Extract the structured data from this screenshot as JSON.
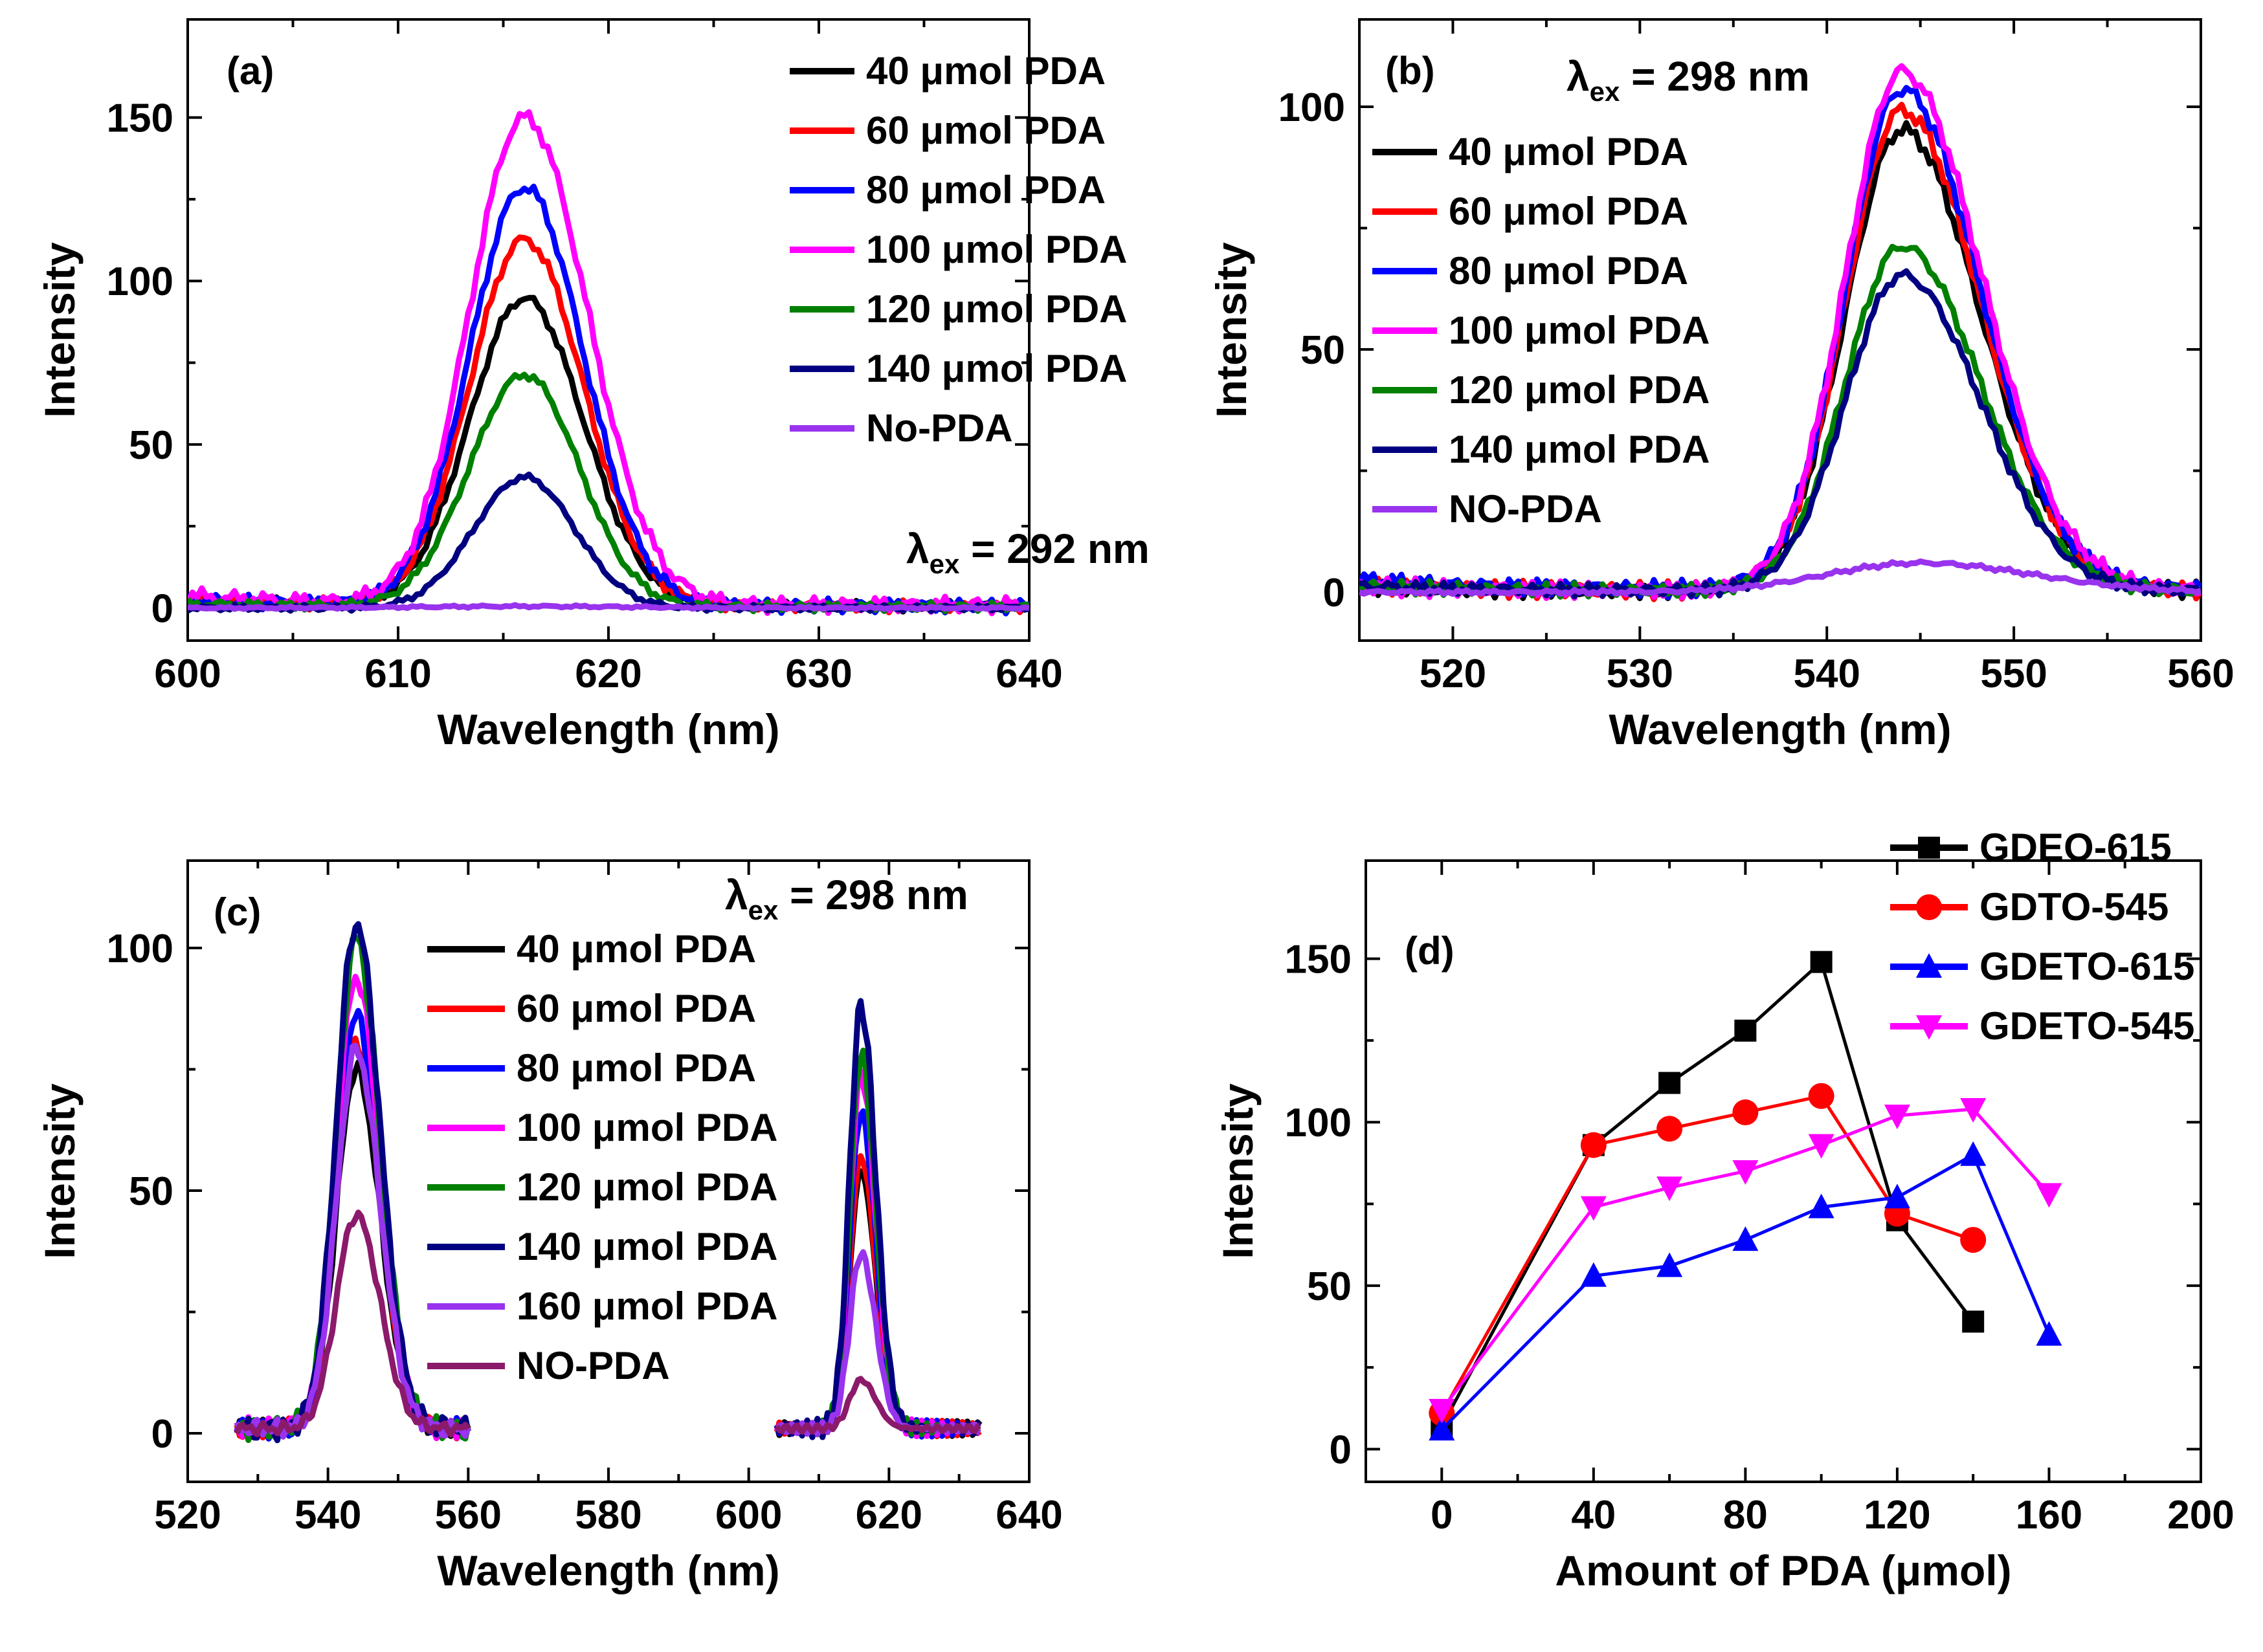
{
  "chart_data": [
    {
      "id": "a",
      "type": "line",
      "panel_label": "(a)",
      "xlabel": "Wavelength (nm)",
      "ylabel": "Intensity",
      "xlim": [
        600,
        640
      ],
      "ylim": [
        -10,
        180
      ],
      "xticks": [
        600,
        610,
        620,
        630,
        640
      ],
      "yticks": [
        0,
        50,
        100,
        150
      ],
      "annotation": {
        "lambda": "λ",
        "sub": "ex",
        "rest": " = 292 nm"
      },
      "legend_position": "top-right",
      "series": [
        {
          "name": "40 μmol PDA",
          "color": "#000000",
          "center": 616,
          "peak": 94,
          "left": 2.6,
          "right": 2.8,
          "base": 2
        },
        {
          "name": "60 μmol PDA",
          "color": "#ff0000",
          "center": 616,
          "peak": 112,
          "left": 2.6,
          "right": 2.8,
          "base": 2
        },
        {
          "name": "80 μmol PDA",
          "color": "#0000ff",
          "center": 616,
          "peak": 128,
          "left": 2.6,
          "right": 2.8,
          "base": 2
        },
        {
          "name": "100 μmol PDA",
          "color": "#ff00ff",
          "center": 616,
          "peak": 149,
          "left": 2.6,
          "right": 3.0,
          "base": 3
        },
        {
          "name": "120 μmol PDA",
          "color": "#008000",
          "center": 616,
          "peak": 71,
          "left": 2.6,
          "right": 2.6,
          "base": 1
        },
        {
          "name": "140 μmol PDA",
          "color": "#000080",
          "center": 616,
          "peak": 40,
          "left": 2.4,
          "right": 2.4,
          "base": 0
        },
        {
          "name": "No-PDA",
          "color": "#9933ee",
          "center": 616,
          "peak": 0.5,
          "left": 5,
          "right": 5,
          "base": 0
        }
      ]
    },
    {
      "id": "b",
      "type": "line",
      "panel_label": "(b)",
      "xlabel": "Wavelength (nm)",
      "ylabel": "Intensity",
      "xlim": [
        515,
        560
      ],
      "ylim": [
        -10,
        118
      ],
      "xticks": [
        520,
        530,
        540,
        550,
        560
      ],
      "yticks": [
        0,
        50,
        100
      ],
      "annotation": {
        "lambda": "λ",
        "sub": "ex",
        "rest": " = 298 nm"
      },
      "legend_position": "top-left",
      "series": [
        {
          "name": "40 μmol PDA",
          "color": "#000000",
          "center": 544,
          "peak": 95,
          "left": 3.0,
          "right": 4.2,
          "base": 1
        },
        {
          "name": "60 μmol PDA",
          "color": "#ff0000",
          "center": 544,
          "peak": 99,
          "left": 3.0,
          "right": 4.2,
          "base": 1
        },
        {
          "name": "80 μmol PDA",
          "color": "#0000ff",
          "center": 544,
          "peak": 103,
          "left": 3.0,
          "right": 4.2,
          "base": 2
        },
        {
          "name": "100 μmol PDA",
          "color": "#ff00ff",
          "center": 544,
          "peak": 107,
          "left": 3.0,
          "right": 4.3,
          "base": 1
        },
        {
          "name": "120 μmol PDA",
          "color": "#008000",
          "center": 544,
          "peak": 71,
          "left": 3.0,
          "right": 4.2,
          "base": 1
        },
        {
          "name": "140 μmol PDA",
          "color": "#000080",
          "center": 544,
          "peak": 65,
          "left": 3.0,
          "right": 4.2,
          "base": 1
        },
        {
          "name": "NO-PDA",
          "color": "#9933ee",
          "center": 545,
          "peak": 6,
          "left": 5.0,
          "right": 6.0,
          "base": 0
        }
      ]
    },
    {
      "id": "c",
      "type": "line",
      "panel_label": "(c)",
      "xlabel": "Wavelength (nm)",
      "ylabel": "Intensity",
      "xlim": [
        520,
        640
      ],
      "ylim": [
        -10,
        118
      ],
      "xticks": [
        520,
        540,
        560,
        580,
        600,
        620,
        640
      ],
      "yticks": [
        0,
        50,
        100
      ],
      "annotation": {
        "lambda": "λ",
        "sub": "ex",
        "rest": " = 298 nm"
      },
      "legend_position": "center",
      "segments": [
        [
          527,
          560
        ],
        [
          604,
          633
        ]
      ],
      "series": [
        {
          "name": "40 μmol PDA",
          "color": "#000000",
          "peak1": 74,
          "peak2": 53
        },
        {
          "name": "60 μmol PDA",
          "color": "#ff0000",
          "peak1": 80,
          "peak2": 56
        },
        {
          "name": "80 μmol PDA",
          "color": "#0000ff",
          "peak1": 85,
          "peak2": 65
        },
        {
          "name": "100 μmol PDA",
          "color": "#ff00ff",
          "peak1": 93,
          "peak2": 73
        },
        {
          "name": "120 μmol PDA",
          "color": "#008000",
          "peak1": 101,
          "peak2": 77
        },
        {
          "name": "140 μmol PDA",
          "color": "#000080",
          "peak1": 104,
          "peak2": 87
        },
        {
          "name": "160 μmol PDA",
          "color": "#9933ee",
          "peak1": 78,
          "peak2": 36
        },
        {
          "name": "NO-PDA",
          "color": "#8b1a6b",
          "peak1": 44,
          "peak2": 10
        }
      ]
    },
    {
      "id": "d",
      "type": "line",
      "panel_label": "(d)",
      "xlabel": "Amount of PDA (μmol)",
      "ylabel": "Intensity",
      "xlim": [
        -20,
        200
      ],
      "ylim": [
        -10,
        180
      ],
      "xticks": [
        0,
        40,
        80,
        120,
        160,
        200
      ],
      "yticks": [
        0,
        50,
        100,
        150
      ],
      "legend_position": "top-right",
      "series": [
        {
          "name": "GDEO-615",
          "color": "#000000",
          "marker": "square",
          "x": [
            0,
            40,
            60,
            80,
            100,
            120,
            140
          ],
          "y": [
            7,
            93,
            112,
            128,
            149,
            70,
            39
          ]
        },
        {
          "name": "GDTO-545",
          "color": "#ff0000",
          "marker": "circle",
          "x": [
            0,
            40,
            60,
            80,
            100,
            120,
            140
          ],
          "y": [
            11,
            93,
            98,
            103,
            108,
            72,
            64
          ]
        },
        {
          "name": "GDETO-615",
          "color": "#0000ff",
          "marker": "triangle-up",
          "x": [
            0,
            40,
            60,
            80,
            100,
            120,
            140,
            160
          ],
          "y": [
            6,
            53,
            56,
            64,
            74,
            77,
            90,
            35
          ]
        },
        {
          "name": "GDETO-545",
          "color": "#ff00ff",
          "marker": "triangle-down",
          "x": [
            0,
            40,
            60,
            80,
            100,
            120,
            140,
            160
          ],
          "y": [
            12,
            74,
            80,
            85,
            93,
            102,
            104,
            78
          ]
        }
      ]
    }
  ]
}
